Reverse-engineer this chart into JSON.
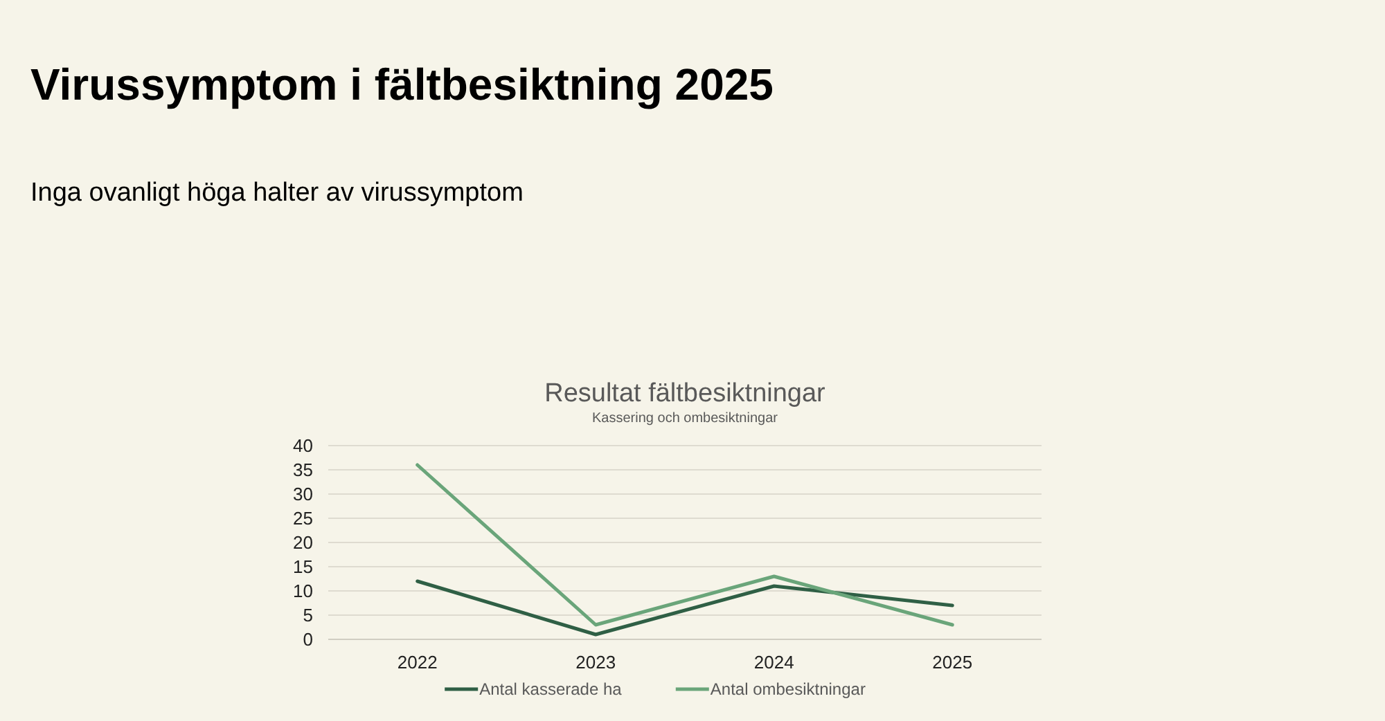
{
  "chart_data": {
    "type": "line",
    "title": "Resultat fältbesiktningar",
    "subtitle": "Kassering och ombesiktningar",
    "annotations": [
      "Virussymptom i fältbesiktning 2025",
      "Inga ovanligt höga halter av virussymptom"
    ],
    "categories": [
      "2022",
      "2023",
      "2024",
      "2025"
    ],
    "series": [
      {
        "name": "Antal kasserade ha",
        "color": "#2f5f45",
        "values": [
          12,
          1,
          11,
          7
        ]
      },
      {
        "name": "Antal ombesiktningar",
        "color": "#6aa57a",
        "values": [
          36,
          3,
          13,
          3
        ]
      }
    ],
    "ylim": [
      0,
      40
    ],
    "yticks": [
      0,
      5,
      10,
      15,
      20,
      25,
      30,
      35,
      40
    ],
    "grid": "y",
    "legend": "bottom",
    "marker": "none",
    "line_style": "solid"
  }
}
